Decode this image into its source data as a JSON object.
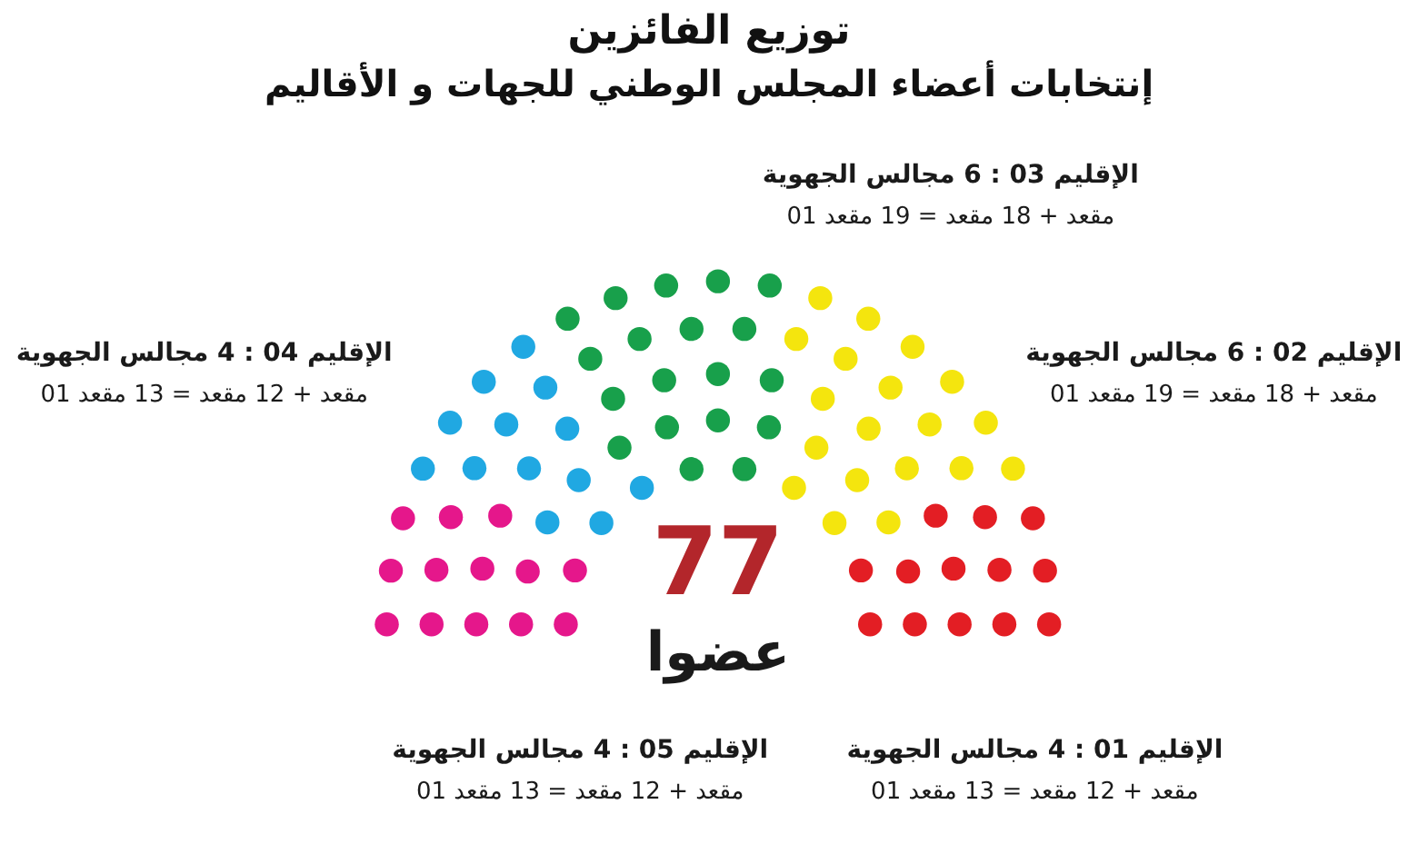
{
  "chart_data": {
    "type": "other",
    "title": "توزيع الفائزين",
    "subtitle": "إنتخابات أعضاء المجلس الوطني للجهات و الأقاليم",
    "categories": [
      "الإقليم 05 : 4 مجالس الجهوية",
      "الإقليم 04 : 4 مجالس الجهوية",
      "الإقليم 03 : 6 مجالس الجهوية",
      "الإقليم 02 : 6 مجالس الجهوية",
      "الإقليم 01 : 4 مجالس الجهوية"
    ],
    "values": [
      13,
      13,
      19,
      19,
      13
    ],
    "colors": [
      "#e5178b",
      "#20a8e2",
      "#18a04b",
      "#f4e50e",
      "#e31e24"
    ],
    "value_labels": [
      "01 مقعد + 12 مقعد = 13 مقعد",
      "01 مقعد + 12 مقعد = 13 مقعد",
      "01 مقعد + 18 مقعد = 19 مقعد",
      "01 مقعد + 18 مقعد = 19 مقعد",
      "01 مقعد + 12 مقعد = 13 مقعد"
    ],
    "annotations": [
      "77",
      "عضوا"
    ]
  }
}
